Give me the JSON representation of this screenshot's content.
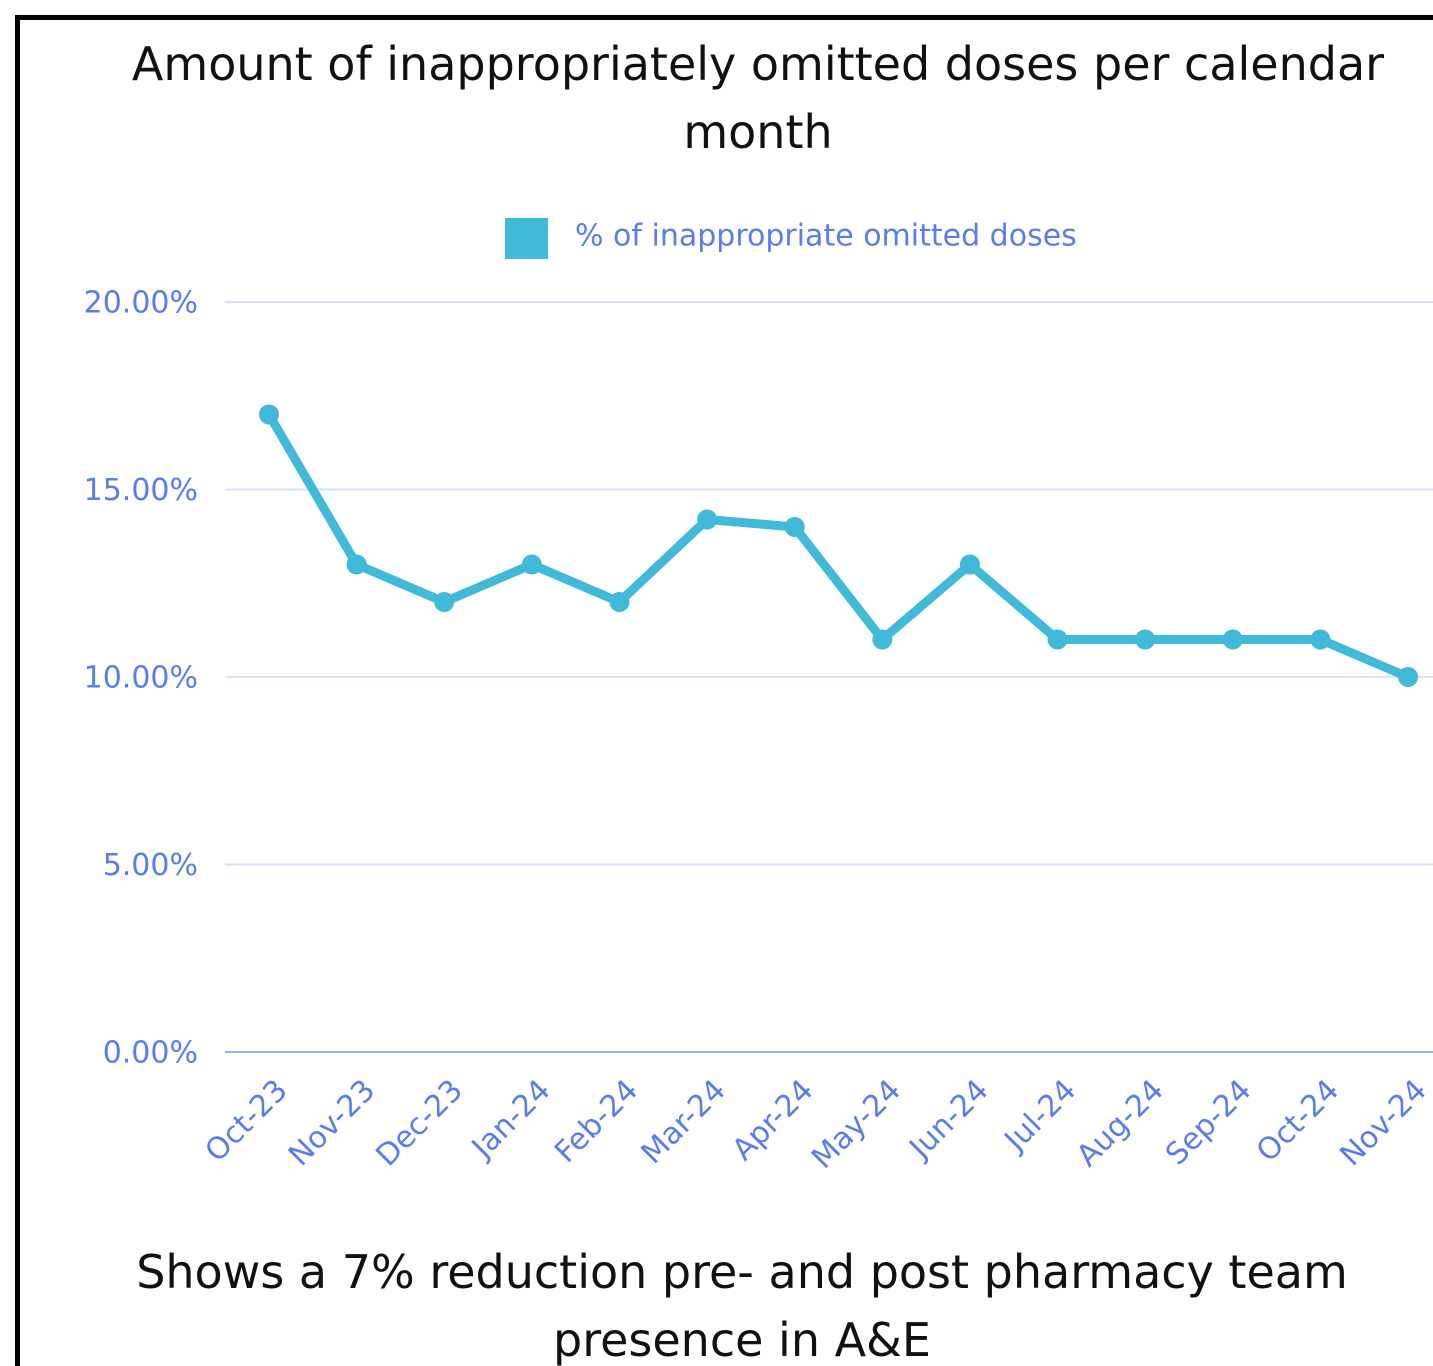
{
  "chart_data": {
    "type": "line",
    "title": "Amount of inappropriately omitted doses per calendar month",
    "caption": "Shows a 7% reduction pre- and post pharmacy team presence in A&E",
    "categories": [
      "Oct-23",
      "Nov-23",
      "Dec-23",
      "Jan-24",
      "Feb-24",
      "Mar-24",
      "Apr-24",
      "May-24",
      "Jun-24",
      "Jul-24",
      "Aug-24",
      "Sep-24",
      "Oct-24",
      "Nov-24"
    ],
    "series": [
      {
        "name": "% of inappropriate omitted doses",
        "color": "#41b9d9",
        "values": [
          17,
          13,
          12,
          13,
          12,
          14.2,
          14,
          11,
          13,
          11,
          11,
          11,
          11,
          10
        ]
      }
    ],
    "ylim": [
      0,
      20
    ],
    "yticks": [
      {
        "value": 0,
        "label": "0.00%"
      },
      {
        "value": 5,
        "label": "5.00%"
      },
      {
        "value": 10,
        "label": "10.00%"
      },
      {
        "value": 15,
        "label": "15.00%"
      },
      {
        "value": 20,
        "label": "20.00%"
      }
    ],
    "grid": true,
    "legend": "top"
  }
}
